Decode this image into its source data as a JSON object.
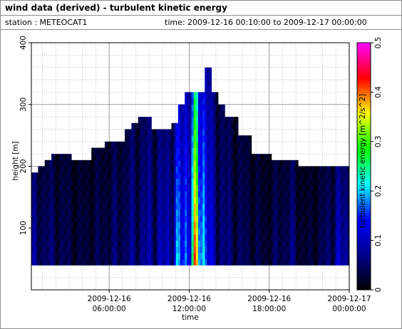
{
  "header": {
    "title": "wind data (derived) - turbulent kinetic energy",
    "station": "station : METEOCAT1",
    "time_range": "time: 2009-12-16 00:10:00 to 2009-12-17 00:00:00"
  },
  "chart_data": {
    "type": "heatmap",
    "title": "wind data (derived) - turbulent kinetic energy",
    "xlabel": "time",
    "ylabel": "height [m]",
    "colorbar_label": "turbulent kinetic energy [m^2/s^2]",
    "xlim": [
      "2009-12-16 00:10:00",
      "2009-12-17 00:00:00"
    ],
    "ylim": [
      0,
      400
    ],
    "clim": [
      0,
      0.5
    ],
    "grid": true,
    "x_ticks": [
      {
        "value": "2009-12-16 06:00:00",
        "line1": "2009-12-16",
        "line2": "06:00:00"
      },
      {
        "value": "2009-12-16 12:00:00",
        "line1": "2009-12-16",
        "line2": "12:00:00"
      },
      {
        "value": "2009-12-16 18:00:00",
        "line1": "2009-12-16",
        "line2": "18:00:00"
      },
      {
        "value": "2009-12-17 00:00:00",
        "line1": "2009-12-17",
        "line2": "00:00:00"
      }
    ],
    "y_ticks": [
      100,
      200,
      300,
      400
    ],
    "colorbar_ticks": [
      0,
      0.1,
      0.2,
      0.3,
      0.4,
      0.5
    ],
    "colormap": [
      "#000000",
      "#00008b",
      "#0000ff",
      "#00ffff",
      "#00ff00",
      "#ffff00",
      "#ff0000",
      "#ff00ff"
    ],
    "bottom_height_m": 40,
    "profile_top_height_m": [
      {
        "hour": 0.17,
        "top": 185
      },
      {
        "hour": 0.5,
        "top": 195
      },
      {
        "hour": 1.0,
        "top": 205
      },
      {
        "hour": 1.5,
        "top": 215
      },
      {
        "hour": 3.0,
        "top": 205
      },
      {
        "hour": 4.5,
        "top": 225
      },
      {
        "hour": 5.0,
        "top": 225
      },
      {
        "hour": 5.5,
        "top": 235
      },
      {
        "hour": 7.0,
        "top": 255
      },
      {
        "hour": 7.5,
        "top": 265
      },
      {
        "hour": 8.0,
        "top": 275
      },
      {
        "hour": 9.0,
        "top": 255
      },
      {
        "hour": 10.5,
        "top": 265
      },
      {
        "hour": 11.0,
        "top": 295
      },
      {
        "hour": 11.5,
        "top": 315
      },
      {
        "hour": 12.5,
        "top": 315
      },
      {
        "hour": 13.0,
        "top": 355
      },
      {
        "hour": 13.5,
        "top": 315
      },
      {
        "hour": 14.0,
        "top": 295
      },
      {
        "hour": 14.5,
        "top": 275
      },
      {
        "hour": 15.5,
        "top": 245
      },
      {
        "hour": 16.5,
        "top": 215
      },
      {
        "hour": 18.0,
        "top": 205
      },
      {
        "hour": 19.5,
        "top": 205
      },
      {
        "hour": 20.0,
        "top": 195
      },
      {
        "hour": 21.5,
        "top": 195
      },
      {
        "hour": 23.0,
        "top": 195
      }
    ],
    "column_tke": [
      {
        "hour": 0.17,
        "tke": 0.09
      },
      {
        "hour": 1.5,
        "tke": 0.07
      },
      {
        "hour": 3.5,
        "tke": 0.04
      },
      {
        "hour": 5.0,
        "tke": 0.05
      },
      {
        "hour": 6.5,
        "tke": 0.07
      },
      {
        "hour": 8.5,
        "tke": 0.1
      },
      {
        "hour": 10.0,
        "tke": 0.12
      },
      {
        "hour": 11.0,
        "tke": 0.2
      },
      {
        "hour": 12.0,
        "tke": 0.3
      },
      {
        "hour": 12.5,
        "tke": 0.44
      },
      {
        "hour": 13.0,
        "tke": 0.3
      },
      {
        "hour": 13.5,
        "tke": 0.12
      },
      {
        "hour": 15.0,
        "tke": 0.07
      },
      {
        "hour": 17.5,
        "tke": 0.04
      },
      {
        "hour": 19.5,
        "tke": 0.08
      },
      {
        "hour": 20.5,
        "tke": 0.03
      },
      {
        "hour": 22.0,
        "tke": 0.06
      },
      {
        "hour": 23.0,
        "tke": 0.12
      }
    ]
  }
}
